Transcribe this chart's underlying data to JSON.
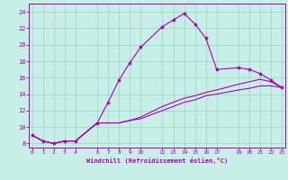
{
  "xlabel": "Windchill (Refroidissement éolien,°C)",
  "ylabel": "",
  "bg_color": "#c8eee8",
  "grid_color": "#a0d8d0",
  "line_color": "#aa00aa",
  "xlim": [
    -0.3,
    23.3
  ],
  "ylim": [
    7.5,
    25
  ],
  "xticks": [
    0,
    1,
    2,
    3,
    4,
    6,
    7,
    8,
    9,
    10,
    12,
    13,
    14,
    15,
    16,
    17,
    19,
    20,
    21,
    22,
    23
  ],
  "yticks": [
    8,
    10,
    12,
    14,
    16,
    18,
    20,
    22,
    24
  ],
  "line1_x": [
    0,
    1,
    2,
    3,
    4,
    6,
    7,
    8,
    9,
    10,
    12,
    13,
    14,
    15,
    16,
    17,
    19,
    20,
    21,
    22,
    23
  ],
  "line1_y": [
    9.0,
    8.3,
    8.0,
    8.3,
    8.3,
    10.5,
    13.0,
    15.7,
    17.8,
    19.7,
    22.2,
    23.0,
    23.8,
    22.5,
    20.8,
    17.0,
    17.2,
    17.0,
    16.5,
    15.7,
    14.8
  ],
  "line2_x": [
    0,
    1,
    2,
    3,
    4,
    6,
    7,
    8,
    9,
    10,
    12,
    13,
    14,
    15,
    16,
    17,
    19,
    20,
    21,
    22,
    23
  ],
  "line2_y": [
    9.0,
    8.3,
    8.0,
    8.3,
    8.3,
    10.5,
    10.5,
    10.5,
    10.8,
    11.0,
    12.0,
    12.5,
    13.0,
    13.3,
    13.8,
    14.0,
    14.5,
    14.7,
    15.0,
    15.0,
    14.8
  ],
  "line3_x": [
    0,
    1,
    2,
    3,
    4,
    6,
    7,
    8,
    9,
    10,
    12,
    13,
    14,
    15,
    16,
    17,
    19,
    20,
    21,
    22,
    23
  ],
  "line3_y": [
    9.0,
    8.3,
    8.0,
    8.3,
    8.3,
    10.5,
    10.5,
    10.5,
    10.8,
    11.2,
    12.5,
    13.0,
    13.5,
    13.8,
    14.2,
    14.5,
    15.2,
    15.5,
    15.8,
    15.5,
    14.8
  ],
  "tick_fontsize": 4.5,
  "xlabel_fontsize": 5.0,
  "line_width": 0.8,
  "marker_size": 3
}
